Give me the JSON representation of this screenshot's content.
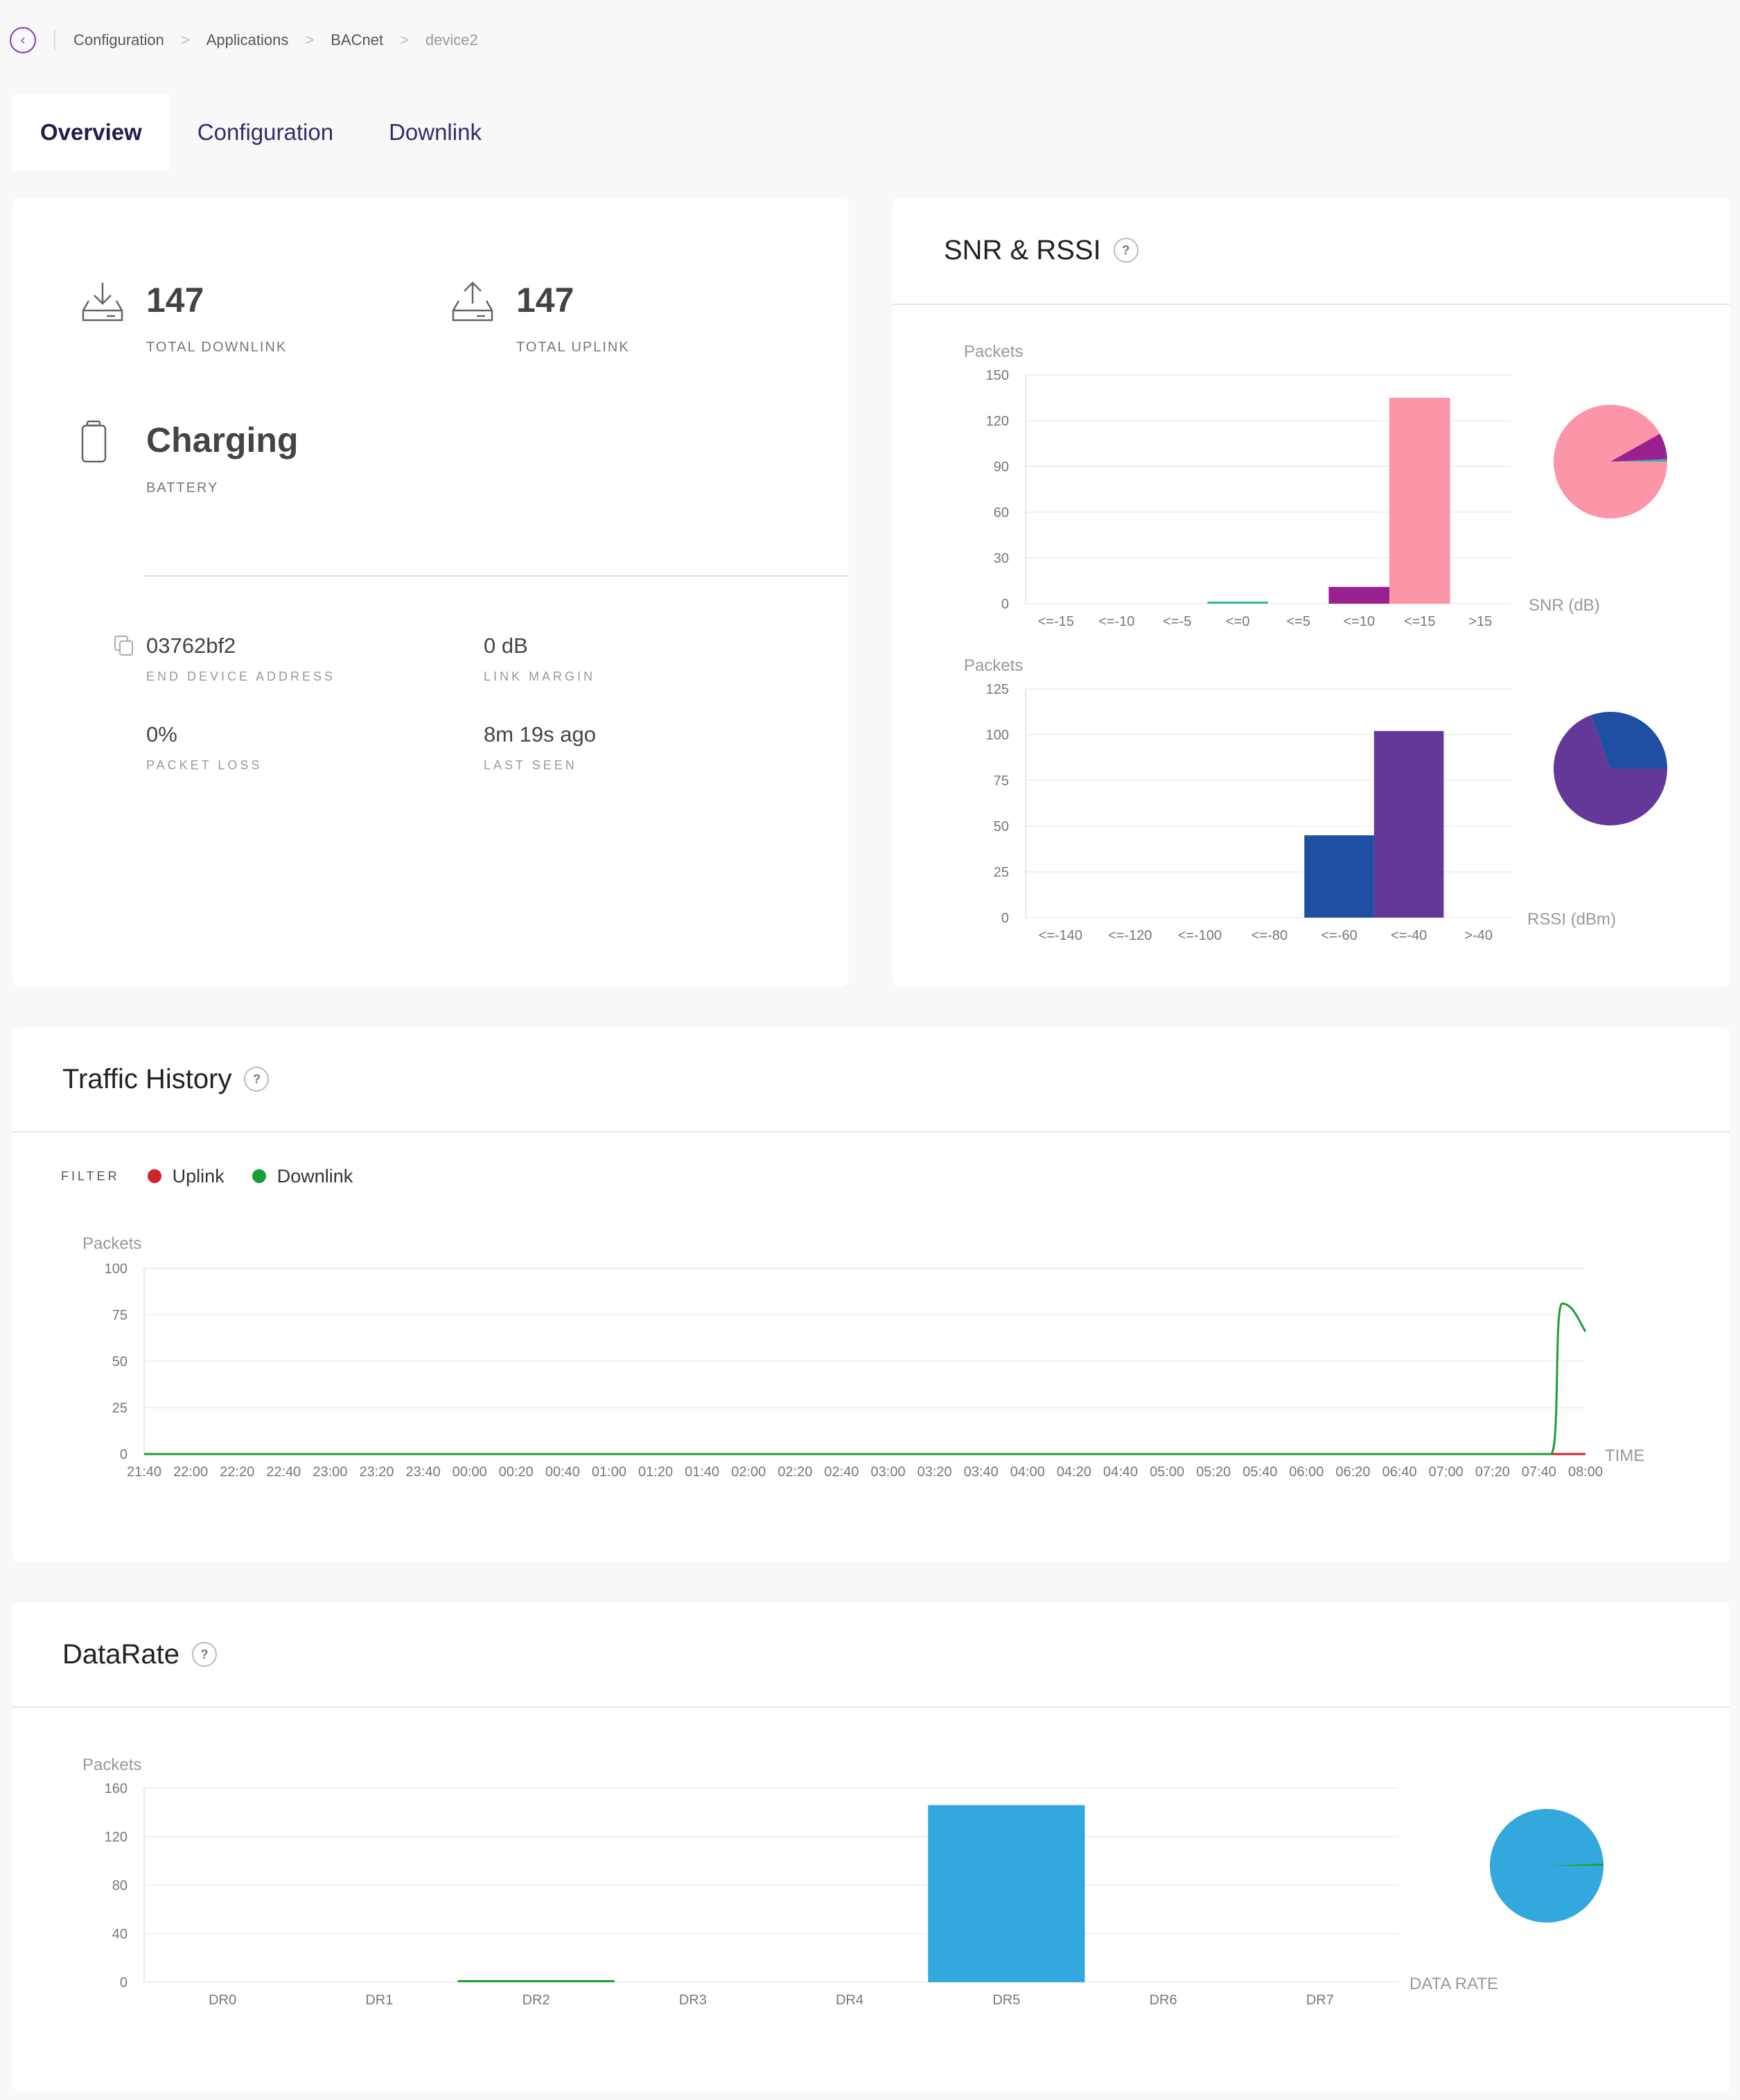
{
  "breadcrumb": {
    "items": [
      "Configuration",
      "Applications",
      "BACnet"
    ],
    "current": "device2",
    "separator": ">"
  },
  "tabs": [
    {
      "label": "Overview",
      "active": true
    },
    {
      "label": "Configuration",
      "active": false
    },
    {
      "label": "Downlink",
      "active": false
    }
  ],
  "overview": {
    "total_downlink": {
      "value": "147",
      "label": "TOTAL DOWNLINK"
    },
    "total_uplink": {
      "value": "147",
      "label": "TOTAL UPLINK"
    },
    "battery": {
      "value": "Charging",
      "label": "BATTERY"
    },
    "end_device_address": {
      "value": "03762bf2",
      "label": "END DEVICE ADDRESS"
    },
    "link_margin": {
      "value": "0 dB",
      "label": "LINK MARGIN"
    },
    "packet_loss": {
      "value": "0%",
      "label": "PACKET LOSS"
    },
    "last_seen": {
      "value": "8m 19s ago",
      "label": "LAST SEEN"
    }
  },
  "snr_rssi": {
    "title": "SNR & RSSI",
    "help": "?"
  },
  "traffic": {
    "title": "Traffic History",
    "help": "?",
    "filter_label": "FILTER",
    "legend": [
      {
        "label": "Uplink",
        "color": "#d0232a"
      },
      {
        "label": "Downlink",
        "color": "#1a9e3a"
      }
    ]
  },
  "datarate": {
    "title": "DataRate",
    "help": "?"
  },
  "chart_data": [
    {
      "id": "snr",
      "type": "bar",
      "ylabel": "Packets",
      "xlabel": "SNR (dB)",
      "categories": [
        "<=-15",
        "<=-10",
        "<=-5",
        "<=0",
        "<=5",
        "<=10",
        "<=15",
        ">15"
      ],
      "values": [
        0,
        0,
        0,
        1,
        0,
        11,
        135,
        0
      ],
      "colors": [
        "#2db8a8",
        "#2db8a8",
        "#2db8a8",
        "#2db8a8",
        "#2db8a8",
        "#9a1f8f",
        "#fd95a8",
        "#fd95a8"
      ],
      "ylim": [
        0,
        150
      ],
      "yticks": [
        0,
        30,
        60,
        90,
        120,
        150
      ],
      "pie": [
        {
          "value": 135,
          "color": "#fd95a8"
        },
        {
          "value": 11,
          "color": "#9a1f8f"
        },
        {
          "value": 1,
          "color": "#2db8a8"
        }
      ]
    },
    {
      "id": "rssi",
      "type": "bar",
      "ylabel": "Packets",
      "xlabel": "RSSI (dBm)",
      "categories": [
        "<=-140",
        "<=-120",
        "<=-100",
        "<=-80",
        "<=-60",
        "<=-40",
        ">-40"
      ],
      "values": [
        0,
        0,
        0,
        0,
        45,
        102,
        0
      ],
      "colors": [
        "#1f4fa3",
        "#1f4fa3",
        "#1f4fa3",
        "#1f4fa3",
        "#1f4fa3",
        "#633899",
        "#633899"
      ],
      "ylim": [
        0,
        125
      ],
      "yticks": [
        0,
        25,
        50,
        75,
        100,
        125
      ],
      "pie": [
        {
          "value": 102,
          "color": "#633899"
        },
        {
          "value": 45,
          "color": "#1f4fa3"
        }
      ]
    },
    {
      "id": "traffic",
      "type": "line",
      "ylabel": "Packets",
      "xlabel": "TIME",
      "x": [
        "21:40",
        "22:00",
        "22:20",
        "22:40",
        "23:00",
        "23:20",
        "23:40",
        "00:00",
        "00:20",
        "00:40",
        "01:00",
        "01:20",
        "01:40",
        "02:00",
        "02:20",
        "02:40",
        "03:00",
        "03:20",
        "03:40",
        "04:00",
        "04:20",
        "04:40",
        "05:00",
        "05:20",
        "05:40",
        "06:00",
        "06:20",
        "06:40",
        "07:00",
        "07:20",
        "07:40",
        "08:00"
      ],
      "ylim": [
        0,
        100
      ],
      "yticks": [
        0,
        25,
        50,
        75,
        100
      ],
      "series": [
        {
          "name": "Uplink",
          "color": "#d0232a",
          "values": [
            0,
            0,
            0,
            0,
            0,
            0,
            0,
            0,
            0,
            0,
            0,
            0,
            0,
            0,
            0,
            0,
            0,
            0,
            0,
            0,
            0,
            0,
            0,
            0,
            0,
            0,
            0,
            0,
            0,
            0,
            0,
            0
          ]
        },
        {
          "name": "Downlink",
          "color": "#1a9e3a",
          "values": [
            0,
            0,
            0,
            0,
            0,
            0,
            0,
            0,
            0,
            0,
            0,
            0,
            0,
            0,
            0,
            0,
            0,
            0,
            0,
            0,
            0,
            0,
            0,
            0,
            0,
            0,
            0,
            0,
            0,
            0,
            0,
            66
          ],
          "peak": {
            "x": "07:50",
            "y": 81
          }
        }
      ]
    },
    {
      "id": "datarate",
      "type": "bar",
      "ylabel": "Packets",
      "xlabel": "DATA RATE",
      "categories": [
        "DR0",
        "DR1",
        "DR2",
        "DR3",
        "DR4",
        "DR5",
        "DR6",
        "DR7"
      ],
      "values": [
        0,
        0,
        1,
        0,
        0,
        146,
        0,
        0
      ],
      "colors": [
        "#33a8de",
        "#33a8de",
        "#1a9e3a",
        "#33a8de",
        "#33a8de",
        "#33a8de",
        "#33a8de",
        "#33a8de"
      ],
      "ylim": [
        0,
        160
      ],
      "yticks": [
        0,
        40,
        80,
        120,
        160
      ],
      "pie": [
        {
          "value": 146,
          "color": "#33a8de"
        },
        {
          "value": 1,
          "color": "#1a9e3a"
        }
      ]
    }
  ]
}
